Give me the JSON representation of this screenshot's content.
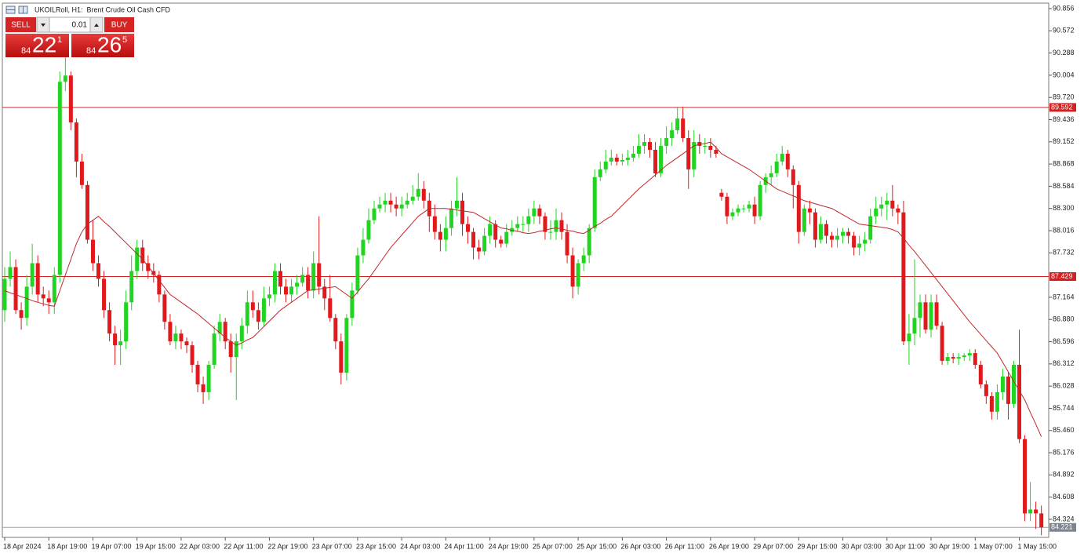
{
  "chart_data": {
    "type": "candlestick",
    "title": "UKOILRoll, H1:  Brent Crude Oil Cash CFD",
    "categories": [
      "18 Apr 2024",
      null,
      null,
      null,
      null,
      null,
      null,
      null,
      "18 Apr 19:00",
      null,
      null,
      null,
      null,
      null,
      null,
      null,
      "19 Apr 07:00",
      null,
      null,
      null,
      null,
      null,
      null,
      null,
      "19 Apr 15:00",
      null,
      null,
      null,
      null,
      null,
      null,
      null,
      "22 Apr 03:00",
      null,
      null,
      null,
      null,
      null,
      null,
      null,
      "22 Apr 11:00",
      null,
      null,
      null,
      null,
      null,
      null,
      null,
      "22 Apr 19:00",
      null,
      null,
      null,
      null,
      null,
      null,
      null,
      "23 Apr 07:00",
      null,
      null,
      null,
      null,
      null,
      null,
      null,
      "23 Apr 15:00",
      null,
      null,
      null,
      null,
      null,
      null,
      null,
      "24 Apr 03:00",
      null,
      null,
      null,
      null,
      null,
      null,
      null,
      "24 Apr 11:00",
      null,
      null,
      null,
      null,
      null,
      null,
      null,
      "24 Apr 19:00",
      null,
      null,
      null,
      null,
      null,
      null,
      null,
      "25 Apr 07:00",
      null,
      null,
      null,
      null,
      null,
      null,
      null,
      "25 Apr 15:00",
      null,
      null,
      null,
      null,
      null,
      null,
      null,
      "26 Apr 03:00",
      null,
      null,
      null,
      null,
      null,
      null,
      null,
      "26 Apr 11:00",
      null,
      null,
      null,
      null,
      null,
      null,
      null,
      "26 Apr 19:00",
      null,
      null,
      null,
      null,
      null,
      null,
      null,
      "29 Apr 07:00",
      null,
      null,
      null,
      null,
      null,
      null,
      null,
      "29 Apr 15:00",
      null,
      null,
      null,
      null,
      null,
      null,
      null,
      "30 Apr 03:00",
      null,
      null,
      null,
      null,
      null,
      null,
      null,
      "30 Apr 11:00",
      null,
      null,
      null,
      null,
      null,
      null,
      null,
      "30 Apr 19:00",
      null,
      null,
      null,
      null,
      null,
      null,
      null,
      "1 May 07:00",
      null,
      null,
      null,
      null,
      null,
      null,
      null,
      "1 May 15:00",
      null,
      null,
      null,
      null
    ],
    "open": [
      87.0,
      87.4,
      87.55,
      87.0,
      86.9,
      87.3,
      87.6,
      87.2,
      87.15,
      87.1,
      87.45,
      89.92,
      90.0,
      89.4,
      88.9,
      88.6,
      87.9,
      87.6,
      87.4,
      87.0,
      86.7,
      86.55,
      86.6,
      87.1,
      87.5,
      87.8,
      87.6,
      87.5,
      87.45,
      87.2,
      86.85,
      86.6,
      86.7,
      86.6,
      86.55,
      86.3,
      86.05,
      85.95,
      86.3,
      86.7,
      86.85,
      86.6,
      86.4,
      86.6,
      86.8,
      87.1,
      87.0,
      86.85,
      87.15,
      87.2,
      87.5,
      87.3,
      87.2,
      87.3,
      87.35,
      87.45,
      87.25,
      87.6,
      87.3,
      87.15,
      86.9,
      86.6,
      86.2,
      86.9,
      87.25,
      87.7,
      87.9,
      88.15,
      88.3,
      88.35,
      88.4,
      88.35,
      88.3,
      88.35,
      88.4,
      88.45,
      88.55,
      88.4,
      88.2,
      88.0,
      87.9,
      88.05,
      88.3,
      88.4,
      88.1,
      88.0,
      87.8,
      87.75,
      87.95,
      88.1,
      87.9,
      87.85,
      88.0,
      88.05,
      88.1,
      88.1,
      88.2,
      88.3,
      88.2,
      88.0,
      88.0,
      88.15,
      88.0,
      87.7,
      87.3,
      87.6,
      87.7,
      88.05,
      88.7,
      88.8,
      88.9,
      88.95,
      88.9,
      88.92,
      88.95,
      89.0,
      89.1,
      89.15,
      89.05,
      88.75,
      89.1,
      89.2,
      89.3,
      89.45,
      89.2,
      88.8,
      89.15,
      89.1,
      89.1,
      89.05,
      88.5,
      88.45,
      88.2,
      88.25,
      88.3,
      88.3,
      88.35,
      88.2,
      88.6,
      88.7,
      88.75,
      88.9,
      89.0,
      88.8,
      88.6,
      88.0,
      88.3,
      88.25,
      87.9,
      88.1,
      87.95,
      87.9,
      87.95,
      88.0,
      87.95,
      87.8,
      87.85,
      87.9,
      88.2,
      88.3,
      88.35,
      88.4,
      88.3,
      88.25,
      86.6,
      86.7,
      86.9,
      87.1,
      86.75,
      87.1,
      86.8,
      86.35,
      86.4,
      86.38,
      86.4,
      86.42,
      86.45,
      86.3,
      86.05,
      85.9,
      85.7,
      85.95,
      86.15,
      85.8,
      86.3,
      85.35,
      84.4,
      84.45,
      84.4
    ],
    "high": [
      87.55,
      87.75,
      87.65,
      87.1,
      87.45,
      87.85,
      87.7,
      87.3,
      87.25,
      87.55,
      90.05,
      90.4,
      90.05,
      89.45,
      89.0,
      88.65,
      88.15,
      87.7,
      87.5,
      87.1,
      86.8,
      86.75,
      87.25,
      87.7,
      87.9,
      87.9,
      87.7,
      87.6,
      87.5,
      87.25,
      86.95,
      86.8,
      86.75,
      86.65,
      86.6,
      86.35,
      86.15,
      86.35,
      86.8,
      86.95,
      86.9,
      86.7,
      86.7,
      86.9,
      87.25,
      87.25,
      87.1,
      87.3,
      87.3,
      87.6,
      87.6,
      87.4,
      87.4,
      87.45,
      87.55,
      87.55,
      87.75,
      88.2,
      87.4,
      87.45,
      86.95,
      86.7,
      86.95,
      87.35,
      87.8,
      88.05,
      88.3,
      88.4,
      88.45,
      88.5,
      88.5,
      88.45,
      88.45,
      88.5,
      88.6,
      88.75,
      88.65,
      88.5,
      88.35,
      88.1,
      88.2,
      88.4,
      88.7,
      88.5,
      88.2,
      88.05,
      87.9,
      88.05,
      88.2,
      88.15,
      87.95,
      88.1,
      88.15,
      88.2,
      88.2,
      88.3,
      88.4,
      88.35,
      88.25,
      88.15,
      88.3,
      88.25,
      88.1,
      87.8,
      87.65,
      87.8,
      88.1,
      88.8,
      88.9,
      89.05,
      89.05,
      89.0,
      89.0,
      89.05,
      89.1,
      89.25,
      89.25,
      89.2,
      89.15,
      89.2,
      89.35,
      89.4,
      89.6,
      89.6,
      89.3,
      89.3,
      89.25,
      89.2,
      89.2,
      89.1,
      88.55,
      88.5,
      88.3,
      88.35,
      88.35,
      88.4,
      88.45,
      88.65,
      88.75,
      88.85,
      89.0,
      89.1,
      89.05,
      88.85,
      88.65,
      88.35,
      88.4,
      88.3,
      88.2,
      88.15,
      88.0,
      88.05,
      88.05,
      88.05,
      88.0,
      87.95,
      88.0,
      88.3,
      88.45,
      88.45,
      88.5,
      88.6,
      88.35,
      88.4,
      86.95,
      87.65,
      87.2,
      87.2,
      87.2,
      87.2,
      86.85,
      86.45,
      86.45,
      86.45,
      86.45,
      86.5,
      86.5,
      86.35,
      86.1,
      85.95,
      86.05,
      86.25,
      86.2,
      86.35,
      86.75,
      85.4,
      84.8,
      84.55,
      84.5
    ],
    "low": [
      86.85,
      87.3,
      86.95,
      86.75,
      86.8,
      87.2,
      87.1,
      87.05,
      86.95,
      86.95,
      87.35,
      89.8,
      89.3,
      88.7,
      88.55,
      87.85,
      87.5,
      87.3,
      86.9,
      86.6,
      86.3,
      86.3,
      86.5,
      87.0,
      87.4,
      87.5,
      87.4,
      87.35,
      87.1,
      86.75,
      86.55,
      86.5,
      86.5,
      86.45,
      86.2,
      85.95,
      85.8,
      85.85,
      86.25,
      86.6,
      86.5,
      86.2,
      85.85,
      86.5,
      86.7,
      86.9,
      86.75,
      86.8,
      87.05,
      87.1,
      87.2,
      87.1,
      87.1,
      87.2,
      87.3,
      87.15,
      87.15,
      87.2,
      87.0,
      86.85,
      86.5,
      86.05,
      86.1,
      86.8,
      87.2,
      87.6,
      87.85,
      88.1,
      88.25,
      88.25,
      88.25,
      88.2,
      88.2,
      88.3,
      88.35,
      88.4,
      88.3,
      88.0,
      87.9,
      87.75,
      87.75,
      87.95,
      88.2,
      87.95,
      87.85,
      87.65,
      87.65,
      87.7,
      87.85,
      87.8,
      87.8,
      87.8,
      87.95,
      88.0,
      88.0,
      88.0,
      88.1,
      88.1,
      87.9,
      87.9,
      87.9,
      87.9,
      87.6,
      87.15,
      87.2,
      87.5,
      87.6,
      88.0,
      88.65,
      88.75,
      88.85,
      88.85,
      88.85,
      88.85,
      88.9,
      88.95,
      89.0,
      88.95,
      88.7,
      88.7,
      89.0,
      89.1,
      89.25,
      89.15,
      88.55,
      88.7,
      89.0,
      89.0,
      88.95,
      88.95,
      88.4,
      88.1,
      88.15,
      88.2,
      88.25,
      88.25,
      88.1,
      88.15,
      88.5,
      88.6,
      88.7,
      88.85,
      88.7,
      88.3,
      87.85,
      87.95,
      88.1,
      87.8,
      87.85,
      87.85,
      87.8,
      87.8,
      87.85,
      87.85,
      87.7,
      87.7,
      87.75,
      87.85,
      88.1,
      88.2,
      88.15,
      88.2,
      88.1,
      86.55,
      86.3,
      86.55,
      86.65,
      86.7,
      86.65,
      86.75,
      86.3,
      86.3,
      86.32,
      86.3,
      86.35,
      86.35,
      86.25,
      86.0,
      85.8,
      85.6,
      85.6,
      85.85,
      85.6,
      85.75,
      85.3,
      84.3,
      84.3,
      84.2,
      84.12
    ],
    "close": [
      87.4,
      87.55,
      87.0,
      86.9,
      87.3,
      87.6,
      87.2,
      87.15,
      87.1,
      87.45,
      89.92,
      90.0,
      89.4,
      88.9,
      88.6,
      87.9,
      87.6,
      87.4,
      87.0,
      86.7,
      86.55,
      86.6,
      87.1,
      87.5,
      87.8,
      87.6,
      87.5,
      87.45,
      87.2,
      86.85,
      86.6,
      86.7,
      86.6,
      86.55,
      86.3,
      86.05,
      85.95,
      86.3,
      86.7,
      86.85,
      86.6,
      86.4,
      86.6,
      86.8,
      87.1,
      87.0,
      86.85,
      87.15,
      87.2,
      87.5,
      87.3,
      87.2,
      87.3,
      87.35,
      87.45,
      87.25,
      87.6,
      87.3,
      87.15,
      86.9,
      86.6,
      86.2,
      86.9,
      87.25,
      87.7,
      87.9,
      88.15,
      88.3,
      88.35,
      88.4,
      88.35,
      88.3,
      88.35,
      88.4,
      88.45,
      88.55,
      88.4,
      88.2,
      88.0,
      87.9,
      88.05,
      88.3,
      88.4,
      88.1,
      88.0,
      87.8,
      87.75,
      87.95,
      88.1,
      87.9,
      87.85,
      88.0,
      88.05,
      88.1,
      88.1,
      88.2,
      88.3,
      88.2,
      88.0,
      88.0,
      88.15,
      88.0,
      87.7,
      87.3,
      87.6,
      87.7,
      88.05,
      88.7,
      88.8,
      88.9,
      88.95,
      88.9,
      88.92,
      88.95,
      89.0,
      89.1,
      89.15,
      89.05,
      88.75,
      89.1,
      89.2,
      89.3,
      89.45,
      89.2,
      88.8,
      89.15,
      89.1,
      89.1,
      89.05,
      89.0,
      88.45,
      88.2,
      88.25,
      88.3,
      88.3,
      88.35,
      88.2,
      88.6,
      88.7,
      88.75,
      88.9,
      89.0,
      88.8,
      88.6,
      88.0,
      88.3,
      88.25,
      87.9,
      88.1,
      87.95,
      87.9,
      87.95,
      88.0,
      87.95,
      87.8,
      87.85,
      87.9,
      88.2,
      88.3,
      88.35,
      88.4,
      88.3,
      88.25,
      86.6,
      86.7,
      86.9,
      87.1,
      86.75,
      87.1,
      86.8,
      86.35,
      86.4,
      86.38,
      86.4,
      86.42,
      86.45,
      86.3,
      86.05,
      85.9,
      85.7,
      85.95,
      86.15,
      85.8,
      86.3,
      85.35,
      84.4,
      84.45,
      84.4,
      84.221
    ],
    "up_color": "#22d422",
    "down_color": "#e0191d",
    "ma": {
      "color": "#c0282b",
      "values": [
        87.25,
        87.22,
        87.2,
        87.17,
        87.15,
        87.12,
        87.1,
        87.08,
        87.06,
        87.05,
        87.25,
        87.45,
        87.65,
        87.85,
        88.0,
        88.1,
        88.15,
        88.2,
        88.13,
        88.07,
        88.0,
        87.93,
        87.86,
        87.79,
        87.72,
        87.65,
        87.56,
        87.47,
        87.38,
        87.29,
        87.2,
        87.15,
        87.1,
        87.05,
        87.0,
        86.95,
        86.89,
        86.83,
        86.77,
        86.71,
        86.65,
        86.6,
        86.55,
        86.58,
        86.62,
        86.65,
        86.72,
        86.79,
        86.86,
        86.93,
        87.0,
        87.05,
        87.1,
        87.15,
        87.2,
        87.25,
        87.26,
        87.27,
        87.28,
        87.29,
        87.3,
        87.25,
        87.2,
        87.15,
        87.23,
        87.32,
        87.4,
        87.5,
        87.6,
        87.7,
        87.8,
        87.88,
        87.96,
        88.04,
        88.12,
        88.2,
        88.25,
        88.3,
        88.3,
        88.3,
        88.3,
        88.29,
        88.28,
        88.27,
        88.26,
        88.25,
        88.21,
        88.17,
        88.13,
        88.09,
        88.05,
        88.04,
        88.02,
        88.01,
        87.99,
        87.98,
        87.99,
        88.01,
        88.02,
        88.04,
        88.05,
        88.04,
        88.02,
        88.01,
        87.99,
        87.98,
        88.02,
        88.07,
        88.11,
        88.16,
        88.2,
        88.27,
        88.34,
        88.41,
        88.48,
        88.55,
        88.61,
        88.67,
        88.73,
        88.79,
        88.85,
        88.9,
        88.95,
        89.0,
        89.05,
        89.1,
        89.12,
        89.13,
        89.15,
        89.08,
        89.0,
        88.96,
        88.92,
        88.88,
        88.84,
        88.8,
        88.75,
        88.7,
        88.65,
        88.6,
        88.55,
        88.52,
        88.49,
        88.46,
        88.43,
        88.4,
        88.38,
        88.36,
        88.34,
        88.32,
        88.3,
        88.26,
        88.22,
        88.18,
        88.14,
        88.1,
        88.09,
        88.08,
        88.07,
        88.06,
        88.05,
        88.03,
        88.0,
        87.92,
        87.83,
        87.75,
        87.66,
        87.57,
        87.48,
        87.39,
        87.3,
        87.21,
        87.12,
        87.03,
        86.94,
        86.85,
        86.77,
        86.69,
        86.61,
        86.53,
        86.45,
        86.33,
        86.21,
        86.09,
        85.97,
        85.85,
        85.69,
        85.54,
        85.38
      ]
    },
    "hlines": [
      89.592,
      87.429
    ],
    "hline_color": "#d42020",
    "last_price": 84.221,
    "ylim": [
      84.093,
      90.926
    ],
    "yticks": [
      90.856,
      90.572,
      90.288,
      90.004,
      {
        "value": 89.72,
        "label": "89.720"
      },
      89.436,
      89.152,
      88.868,
      88.584,
      {
        "value": 88.3,
        "label": "88.300"
      },
      88.016,
      87.732,
      87.164,
      {
        "value": 86.88,
        "label": "86.880"
      },
      86.596,
      86.312,
      86.028,
      85.744,
      {
        "value": 85.46,
        "label": "85.460"
      },
      85.176,
      84.892,
      84.608,
      84.324
    ],
    "grid": false
  },
  "trade_panel": {
    "sell": "SELL",
    "lot": "0.01",
    "buy": "BUY",
    "bid": {
      "prefix": "84",
      "big": "22",
      "sup": "1"
    },
    "ask": {
      "prefix": "84",
      "big": "26",
      "sup": "5"
    }
  }
}
